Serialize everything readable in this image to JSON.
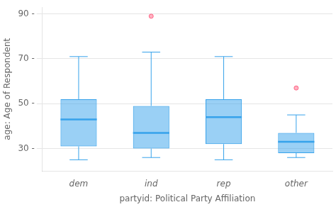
{
  "chart_data": {
    "type": "box",
    "categories": [
      "dem",
      "ind",
      "rep",
      "other"
    ],
    "q1": [
      31,
      30,
      32,
      28
    ],
    "median": [
      43,
      37,
      44,
      33
    ],
    "q3": [
      52,
      49,
      52,
      37
    ],
    "whislo": [
      25,
      26,
      25,
      26
    ],
    "whishi": [
      71,
      73,
      71,
      45
    ],
    "fliers": [
      [],
      [
        89
      ],
      [],
      [
        57
      ]
    ],
    "xlabel": "partyid: Political Party Affiliation",
    "ylabel": "age: Age of Respondent",
    "ylim": [
      20,
      93
    ],
    "yticks": [
      {
        "value": 30,
        "label": "30 -"
      },
      {
        "value": 50,
        "label": "50 -"
      },
      {
        "value": 70,
        "label": "70 -"
      },
      {
        "value": 90,
        "label": "90 -"
      }
    ],
    "grid": true
  }
}
